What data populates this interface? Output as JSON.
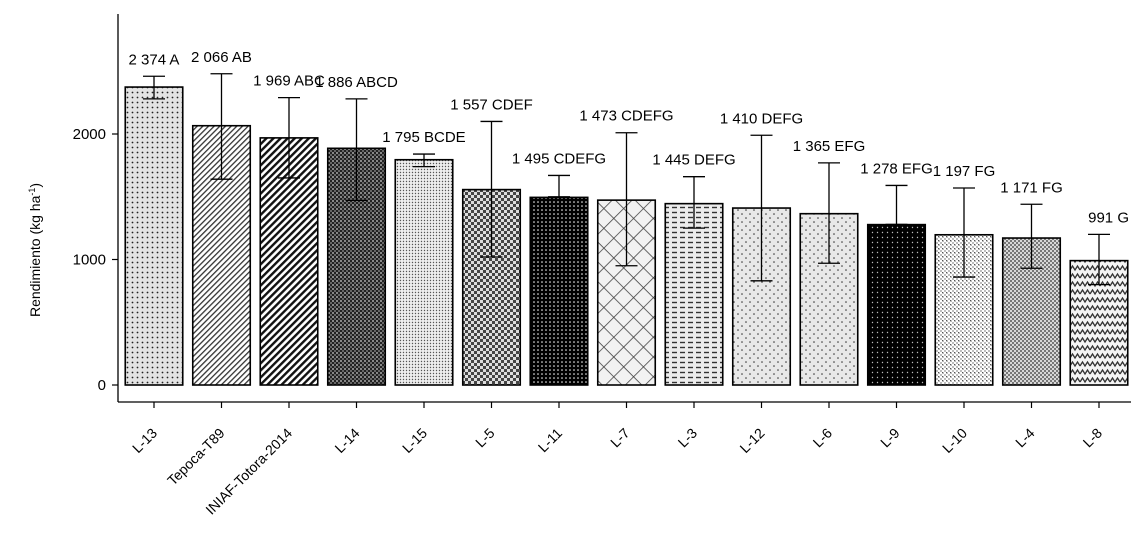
{
  "chart_data": {
    "type": "bar",
    "xlabel": "",
    "ylabel": "Rendimiento (kg ha",
    "ylabel_sup": "-1",
    "ylabel_close": ")",
    "ylim": [
      0,
      2500
    ],
    "yticks": [
      0,
      1000,
      2000
    ],
    "ytick_labels": [
      "0",
      "1000",
      "2000"
    ],
    "grid": false,
    "categories": [
      "L-13",
      "Tepoca-T89",
      "INIAF-Totora-2014",
      "L-14",
      "L-15",
      "L-5",
      "L-11",
      "L-7",
      "L-3",
      "L-12",
      "L-6",
      "L-9",
      "L-10",
      "L-4",
      "L-8"
    ],
    "values": [
      2374,
      2066,
      1969,
      1886,
      1795,
      1557,
      1495,
      1473,
      1445,
      1410,
      1365,
      1278,
      1197,
      1171,
      991
    ],
    "error_low": [
      2280,
      1640,
      1650,
      1470,
      1740,
      1020,
      1500,
      950,
      1250,
      830,
      970,
      1280,
      860,
      930,
      800
    ],
    "error_high": [
      2460,
      2480,
      2290,
      2280,
      1840,
      2100,
      1670,
      2010,
      1660,
      1990,
      1770,
      1590,
      1570,
      1440,
      1200
    ],
    "data_labels": [
      "2 374 A",
      "2 066 AB",
      "1 969 ABC",
      "1 886 ABCD",
      "1 795 BCDE",
      "1 557 CDEF",
      "1 495 CDEFG",
      "1 473 CDEFG",
      "1 445 DEFG",
      "1 410 DEFG",
      "1 365 EFG",
      "1 278 EFG",
      "1 197 FG",
      "1 171 FG",
      "991 G"
    ],
    "patterns": [
      "dots-light",
      "diag-right-fine",
      "diag-right-bold",
      "checker-dark",
      "dots-dense",
      "checker-medium",
      "dots-black",
      "crosshatch-diamond",
      "dashes-horizontal",
      "dots-sparse",
      "dots-sparse",
      "dots-black-heavy",
      "checker-fine",
      "checker-fine-dark",
      "zigzag"
    ]
  }
}
